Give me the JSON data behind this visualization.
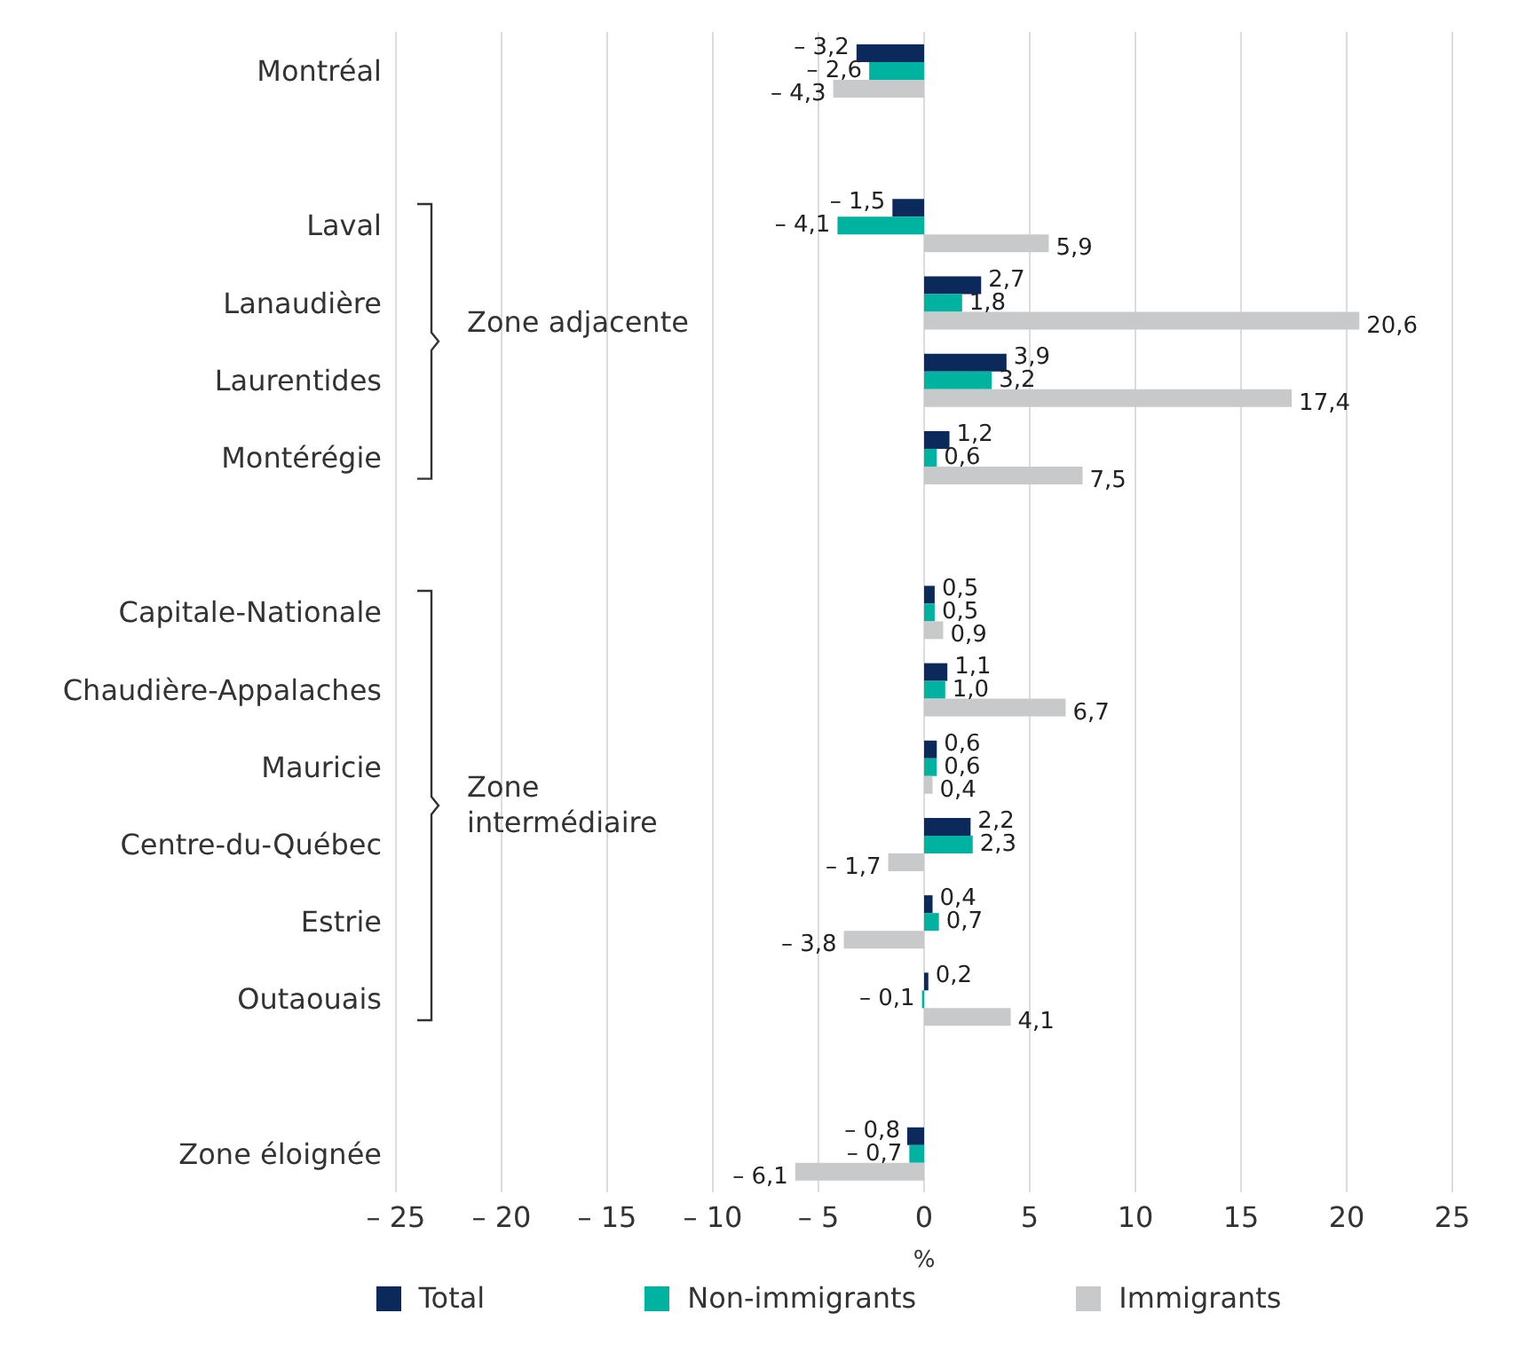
{
  "chart_data": {
    "type": "bar",
    "orientation": "horizontal",
    "categories": [
      "Montréal",
      null,
      "Laval",
      "Lanaudière",
      "Laurentides",
      "Montérégie",
      null,
      "Capitale-Nationale",
      "Chaudière-Appalaches",
      "Mauricie",
      "Centre-du-Québec",
      "Estrie",
      "Outaouais",
      null,
      "Zone éloignée"
    ],
    "series": [
      {
        "name": "Total",
        "color": "#0b2a5b",
        "values": [
          -3.2,
          null,
          -1.5,
          2.7,
          3.9,
          1.2,
          null,
          0.5,
          1.1,
          0.6,
          2.2,
          0.4,
          0.2,
          null,
          -0.8
        ],
        "value_labels": [
          "– 3,2",
          null,
          "– 1,5",
          "2,7",
          "3,9",
          "1,2",
          null,
          "0,5",
          "1,1",
          "0,6",
          "2,2",
          "0,4",
          "0,2",
          null,
          "– 0,8"
        ]
      },
      {
        "name": "Non-immigrants",
        "color": "#00b3a0",
        "values": [
          -2.6,
          null,
          -4.1,
          1.8,
          3.2,
          0.6,
          null,
          0.5,
          1.0,
          0.6,
          2.3,
          0.7,
          -0.1,
          null,
          -0.7
        ],
        "value_labels": [
          "– 2,6",
          null,
          "– 4,1",
          "1,8",
          "3,2",
          "0,6",
          null,
          "0,5",
          "1,0",
          "0,6",
          "2,3",
          "0,7",
          "– 0,1",
          null,
          "– 0,7"
        ]
      },
      {
        "name": "Immigrants",
        "color": "#c8c9cb",
        "values": [
          -4.3,
          null,
          5.9,
          20.6,
          17.4,
          7.5,
          null,
          0.9,
          6.7,
          0.4,
          -1.7,
          -3.8,
          4.1,
          null,
          -6.1
        ],
        "value_labels": [
          "– 4,3",
          null,
          "5,9",
          "20,6",
          "17,4",
          "7,5",
          null,
          "0,9",
          "6,7",
          "0,4",
          "– 1,7",
          "– 3,8",
          "4,1",
          null,
          "– 6,1"
        ]
      }
    ],
    "xlabel": "%",
    "xlim": [
      -25,
      25
    ],
    "xticks": [
      {
        "value": -25,
        "label": "– 25"
      },
      {
        "value": -20,
        "label": "– 20"
      },
      {
        "value": -15,
        "label": "– 15"
      },
      {
        "value": -10,
        "label": "– 10"
      },
      {
        "value": -5,
        "label": "– 5"
      },
      0,
      5,
      10,
      15,
      20,
      25
    ],
    "annotations": [
      "Zone adjacente",
      "Zone intermédiaire"
    ],
    "grid": "x",
    "legend": "bottom"
  }
}
